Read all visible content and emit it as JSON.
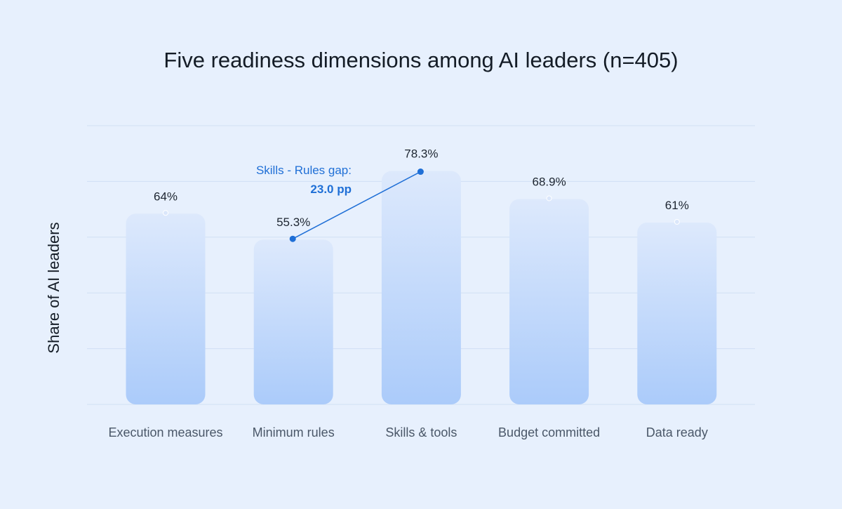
{
  "chart_data": {
    "type": "bar",
    "title": "Five readiness dimensions among AI leaders (n=405)",
    "xlabel": "",
    "ylabel": "Share of AI leaders",
    "categories": [
      "Execution measures",
      "Minimum rules",
      "Skills & tools",
      "Budget committed",
      "Data ready"
    ],
    "values": [
      64,
      55.3,
      78.3,
      68.9,
      61
    ],
    "value_labels": [
      "64%",
      "55.3%",
      "78.3%",
      "68.9%",
      "61%"
    ],
    "ylim": [
      0,
      93.5
    ],
    "grid": true,
    "annotation": {
      "from_category": "Minimum rules",
      "to_category": "Skills & tools",
      "label_line1": "Skills - Rules gap:",
      "label_line2": "23.0 pp"
    },
    "colors": {
      "bar_top": "#dde9fc",
      "bar_bottom": "#abcbfa",
      "accent": "#1f6fd6",
      "grid": "#d0dff4"
    }
  }
}
